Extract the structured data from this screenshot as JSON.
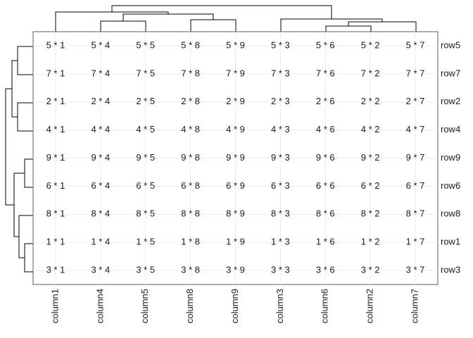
{
  "table": {
    "columns": [
      "column1",
      "column4",
      "column5",
      "column8",
      "column9",
      "column3",
      "column6",
      "column2",
      "column7"
    ],
    "rows": [
      "row5",
      "row7",
      "row2",
      "row4",
      "row9",
      "row6",
      "row8",
      "row1",
      "row3"
    ],
    "cells": [
      [
        "5 * 1",
        "5 * 4",
        "5 * 5",
        "5 * 8",
        "5 * 9",
        "5 * 3",
        "5 * 6",
        "5 * 2",
        "5 * 7"
      ],
      [
        "7 * 1",
        "7 * 4",
        "7 * 5",
        "7 * 8",
        "7 * 9",
        "7 * 3",
        "7 * 6",
        "7 * 2",
        "7 * 7"
      ],
      [
        "2 * 1",
        "2 * 4",
        "2 * 5",
        "2 * 8",
        "2 * 9",
        "2 * 3",
        "2 * 6",
        "2 * 2",
        "2 * 7"
      ],
      [
        "4 * 1",
        "4 * 4",
        "4 * 5",
        "4 * 8",
        "4 * 9",
        "4 * 3",
        "4 * 6",
        "4 * 2",
        "4 * 7"
      ],
      [
        "9 * 1",
        "9 * 4",
        "9 * 5",
        "9 * 8",
        "9 * 9",
        "9 * 3",
        "9 * 6",
        "9 * 2",
        "9 * 7"
      ],
      [
        "6 * 1",
        "6 * 4",
        "6 * 5",
        "6 * 8",
        "6 * 9",
        "6 * 3",
        "6 * 6",
        "6 * 2",
        "6 * 7"
      ],
      [
        "8 * 1",
        "8 * 4",
        "8 * 5",
        "8 * 8",
        "8 * 9",
        "8 * 3",
        "8 * 6",
        "8 * 2",
        "8 * 7"
      ],
      [
        "1 * 1",
        "1 * 4",
        "1 * 5",
        "1 * 8",
        "1 * 9",
        "1 * 3",
        "1 * 6",
        "1 * 2",
        "1 * 7"
      ],
      [
        "3 * 1",
        "3 * 4",
        "3 * 5",
        "3 * 8",
        "3 * 9",
        "3 * 3",
        "3 * 6",
        "3 * 2",
        "3 * 7"
      ]
    ]
  }
}
